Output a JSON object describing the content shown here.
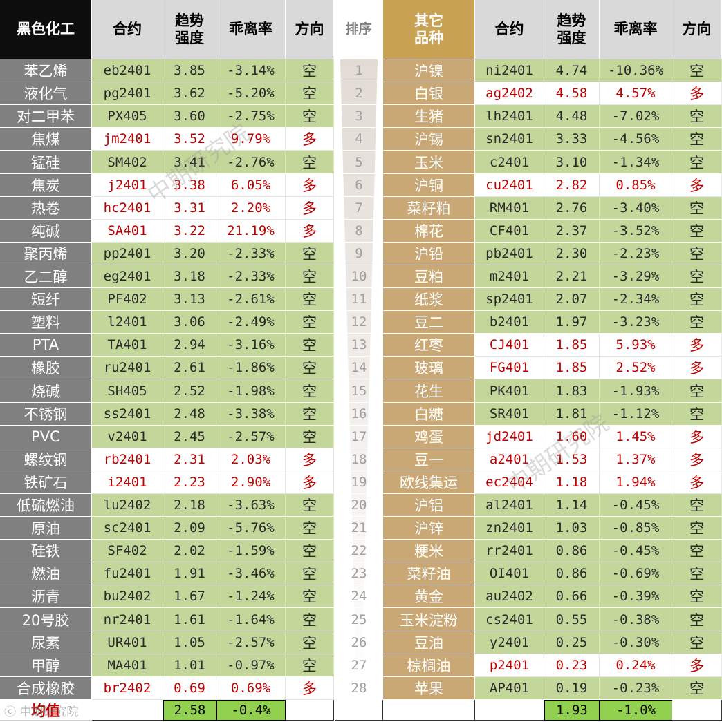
{
  "header": {
    "left_category": "黑色化工",
    "right_category": "其它品种",
    "contract": "合约",
    "strength": "趋势强度",
    "deviation": "乖离率",
    "direction": "方向",
    "rank": "排序"
  },
  "colors": {
    "short_fill": "#c4d79b",
    "long_text": "#c00000",
    "left_name_fill": "#808080",
    "right_name_fill": "#c9a876",
    "right_header_fill": "#c9a153",
    "average_fill": "#92d050"
  },
  "rows": [
    {
      "rank": "1",
      "left": {
        "name": "苯乙烯",
        "contract": "eb2401",
        "strength": "3.85",
        "deviation": "-3.14%",
        "direction": "空"
      },
      "right": {
        "name": "沪镍",
        "contract": "ni2401",
        "strength": "4.74",
        "deviation": "-10.36%",
        "direction": "空"
      }
    },
    {
      "rank": "2",
      "left": {
        "name": "液化气",
        "contract": "pg2401",
        "strength": "3.62",
        "deviation": "-5.20%",
        "direction": "空"
      },
      "right": {
        "name": "白银",
        "contract": "ag2402",
        "strength": "4.58",
        "deviation": "4.57%",
        "direction": "多"
      }
    },
    {
      "rank": "3",
      "left": {
        "name": "对二甲苯",
        "contract": "PX405",
        "strength": "3.60",
        "deviation": "-2.75%",
        "direction": "空"
      },
      "right": {
        "name": "生猪",
        "contract": "lh2401",
        "strength": "4.48",
        "deviation": "-7.02%",
        "direction": "空"
      }
    },
    {
      "rank": "4",
      "left": {
        "name": "焦煤",
        "contract": "jm2401",
        "strength": "3.52",
        "deviation": "9.79%",
        "direction": "多"
      },
      "right": {
        "name": "沪锡",
        "contract": "sn2401",
        "strength": "3.33",
        "deviation": "-4.56%",
        "direction": "空"
      }
    },
    {
      "rank": "5",
      "left": {
        "name": "锰硅",
        "contract": "SM402",
        "strength": "3.41",
        "deviation": "-2.76%",
        "direction": "空"
      },
      "right": {
        "name": "玉米",
        "contract": "c2401",
        "strength": "3.10",
        "deviation": "-1.34%",
        "direction": "空"
      }
    },
    {
      "rank": "6",
      "left": {
        "name": "焦炭",
        "contract": "j2401",
        "strength": "3.38",
        "deviation": "6.05%",
        "direction": "多"
      },
      "right": {
        "name": "沪铜",
        "contract": "cu2401",
        "strength": "2.82",
        "deviation": "0.85%",
        "direction": "多"
      }
    },
    {
      "rank": "7",
      "left": {
        "name": "热卷",
        "contract": "hc2401",
        "strength": "3.31",
        "deviation": "2.20%",
        "direction": "多"
      },
      "right": {
        "name": "菜籽粕",
        "contract": "RM401",
        "strength": "2.76",
        "deviation": "-3.40%",
        "direction": "空"
      }
    },
    {
      "rank": "8",
      "left": {
        "name": "纯碱",
        "contract": "SA401",
        "strength": "3.22",
        "deviation": "21.19%",
        "direction": "多"
      },
      "right": {
        "name": "棉花",
        "contract": "CF401",
        "strength": "2.37",
        "deviation": "-3.52%",
        "direction": "空"
      }
    },
    {
      "rank": "9",
      "left": {
        "name": "聚丙烯",
        "contract": "pp2401",
        "strength": "3.20",
        "deviation": "-2.33%",
        "direction": "空"
      },
      "right": {
        "name": "沪铅",
        "contract": "pb2401",
        "strength": "2.30",
        "deviation": "-2.23%",
        "direction": "空"
      }
    },
    {
      "rank": "10",
      "left": {
        "name": "乙二醇",
        "contract": "eg2401",
        "strength": "3.18",
        "deviation": "-2.33%",
        "direction": "空"
      },
      "right": {
        "name": "豆粕",
        "contract": "m2401",
        "strength": "2.21",
        "deviation": "-3.29%",
        "direction": "空"
      }
    },
    {
      "rank": "11",
      "left": {
        "name": "短纤",
        "contract": "PF402",
        "strength": "3.13",
        "deviation": "-2.61%",
        "direction": "空"
      },
      "right": {
        "name": "纸浆",
        "contract": "sp2401",
        "strength": "2.07",
        "deviation": "-2.34%",
        "direction": "空"
      }
    },
    {
      "rank": "12",
      "left": {
        "name": "塑料",
        "contract": "l2401",
        "strength": "3.06",
        "deviation": "-2.49%",
        "direction": "空"
      },
      "right": {
        "name": "豆二",
        "contract": "b2401",
        "strength": "1.97",
        "deviation": "-3.23%",
        "direction": "空"
      }
    },
    {
      "rank": "13",
      "left": {
        "name": "PTA",
        "contract": "TA401",
        "strength": "2.94",
        "deviation": "-3.16%",
        "direction": "空"
      },
      "right": {
        "name": "红枣",
        "contract": "CJ401",
        "strength": "1.85",
        "deviation": "5.93%",
        "direction": "多"
      }
    },
    {
      "rank": "14",
      "left": {
        "name": "橡胶",
        "contract": "ru2401",
        "strength": "2.61",
        "deviation": "-1.86%",
        "direction": "空"
      },
      "right": {
        "name": "玻璃",
        "contract": "FG401",
        "strength": "1.85",
        "deviation": "2.52%",
        "direction": "多"
      }
    },
    {
      "rank": "15",
      "left": {
        "name": "烧碱",
        "contract": "SH405",
        "strength": "2.52",
        "deviation": "-1.98%",
        "direction": "空"
      },
      "right": {
        "name": "花生",
        "contract": "PK401",
        "strength": "1.83",
        "deviation": "-1.93%",
        "direction": "空"
      }
    },
    {
      "rank": "16",
      "left": {
        "name": "不锈钢",
        "contract": "ss2401",
        "strength": "2.48",
        "deviation": "-3.38%",
        "direction": "空"
      },
      "right": {
        "name": "白糖",
        "contract": "SR401",
        "strength": "1.81",
        "deviation": "-1.12%",
        "direction": "空"
      }
    },
    {
      "rank": "17",
      "left": {
        "name": "PVC",
        "contract": "v2401",
        "strength": "2.45",
        "deviation": "-2.57%",
        "direction": "空"
      },
      "right": {
        "name": "鸡蛋",
        "contract": "jd2401",
        "strength": "1.60",
        "deviation": "1.45%",
        "direction": "多"
      }
    },
    {
      "rank": "18",
      "left": {
        "name": "螺纹钢",
        "contract": "rb2401",
        "strength": "2.31",
        "deviation": "2.03%",
        "direction": "多"
      },
      "right": {
        "name": "豆一",
        "contract": "a2401",
        "strength": "1.53",
        "deviation": "1.37%",
        "direction": "多"
      }
    },
    {
      "rank": "19",
      "left": {
        "name": "铁矿石",
        "contract": "i2401",
        "strength": "2.23",
        "deviation": "2.90%",
        "direction": "多"
      },
      "right": {
        "name": "欧线集运",
        "contract": "ec2404",
        "strength": "1.18",
        "deviation": "1.94%",
        "direction": "多"
      }
    },
    {
      "rank": "20",
      "left": {
        "name": "低硫燃油",
        "contract": "lu2402",
        "strength": "2.18",
        "deviation": "-3.63%",
        "direction": "空"
      },
      "right": {
        "name": "沪铝",
        "contract": "al2401",
        "strength": "1.14",
        "deviation": "-0.45%",
        "direction": "空"
      }
    },
    {
      "rank": "21",
      "left": {
        "name": "原油",
        "contract": "sc2401",
        "strength": "2.09",
        "deviation": "-5.76%",
        "direction": "空"
      },
      "right": {
        "name": "沪锌",
        "contract": "zn2401",
        "strength": "1.03",
        "deviation": "-0.85%",
        "direction": "空"
      }
    },
    {
      "rank": "22",
      "left": {
        "name": "硅铁",
        "contract": "SF402",
        "strength": "2.02",
        "deviation": "-1.59%",
        "direction": "空"
      },
      "right": {
        "name": "粳米",
        "contract": "rr2401",
        "strength": "0.86",
        "deviation": "-0.45%",
        "direction": "空"
      }
    },
    {
      "rank": "23",
      "left": {
        "name": "燃油",
        "contract": "fu2401",
        "strength": "1.91",
        "deviation": "-3.46%",
        "direction": "空"
      },
      "right": {
        "name": "菜籽油",
        "contract": "OI401",
        "strength": "0.86",
        "deviation": "-0.69%",
        "direction": "空"
      }
    },
    {
      "rank": "24",
      "left": {
        "name": "沥青",
        "contract": "bu2402",
        "strength": "1.67",
        "deviation": "-1.24%",
        "direction": "空"
      },
      "right": {
        "name": "黄金",
        "contract": "au2402",
        "strength": "0.66",
        "deviation": "-0.39%",
        "direction": "空"
      }
    },
    {
      "rank": "25",
      "left": {
        "name": "20号胶",
        "contract": "nr2401",
        "strength": "1.61",
        "deviation": "-1.64%",
        "direction": "空"
      },
      "right": {
        "name": "玉米淀粉",
        "contract": "cs2401",
        "strength": "0.55",
        "deviation": "-0.38%",
        "direction": "空"
      }
    },
    {
      "rank": "26",
      "left": {
        "name": "尿素",
        "contract": "UR401",
        "strength": "1.05",
        "deviation": "-2.57%",
        "direction": "空"
      },
      "right": {
        "name": "豆油",
        "contract": "y2401",
        "strength": "0.25",
        "deviation": "-0.30%",
        "direction": "空"
      }
    },
    {
      "rank": "27",
      "left": {
        "name": "甲醇",
        "contract": "MA401",
        "strength": "1.01",
        "deviation": "-0.97%",
        "direction": "空"
      },
      "right": {
        "name": "棕榈油",
        "contract": "p2401",
        "strength": "0.23",
        "deviation": "0.24%",
        "direction": "多"
      }
    },
    {
      "rank": "28",
      "left": {
        "name": "合成橡胶",
        "contract": "br2402",
        "strength": "0.69",
        "deviation": "0.69%",
        "direction": "多"
      },
      "right": {
        "name": "苹果",
        "contract": "AP401",
        "strength": "0.19",
        "deviation": "-0.23%",
        "direction": "空"
      }
    }
  ],
  "average": {
    "label": "均值",
    "left_strength": "2.58",
    "left_deviation": "-0.4%",
    "right_strength": "1.93",
    "right_deviation": "-1.0%"
  },
  "watermark": "中期研究院",
  "logo_text": "中期研究院"
}
